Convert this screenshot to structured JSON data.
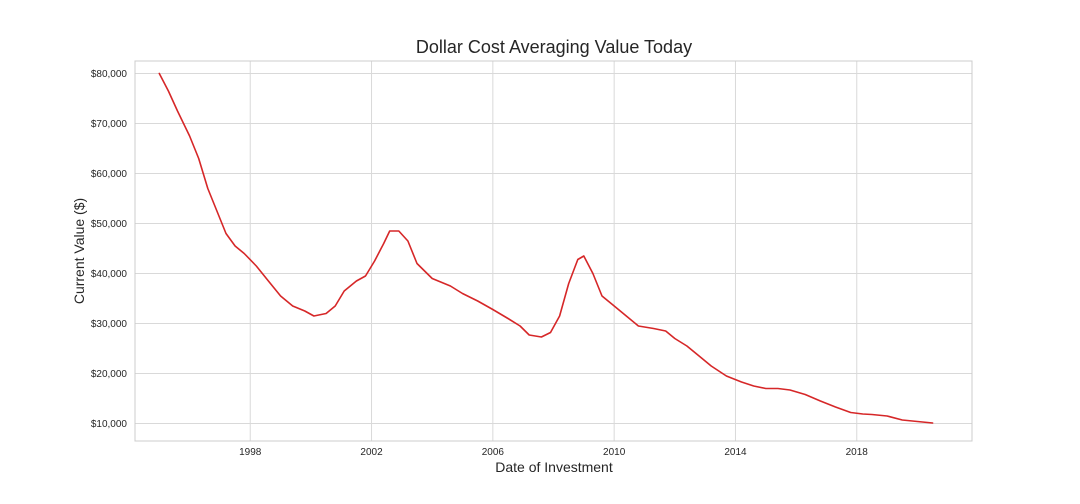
{
  "chart_data": {
    "type": "line",
    "title": "Dollar Cost Averaging Value Today",
    "xlabel": "Date of Investment",
    "ylabel": "Current Value ($)",
    "xlim": [
      1994.2,
      2021.8
    ],
    "ylim": [
      6500,
      82500
    ],
    "grid": true,
    "legend": "none",
    "colors": {
      "series": "#d62728",
      "grid": "#d9d9d9",
      "frame": "#cccccc",
      "text": "#262626"
    },
    "x_ticks": [
      {
        "value": 1998,
        "label": "1998"
      },
      {
        "value": 2002,
        "label": "2002"
      },
      {
        "value": 2006,
        "label": "2006"
      },
      {
        "value": 2010,
        "label": "2010"
      },
      {
        "value": 2014,
        "label": "2014"
      },
      {
        "value": 2018,
        "label": "2018"
      }
    ],
    "y_ticks": [
      {
        "value": 10000,
        "label": "$10,000"
      },
      {
        "value": 20000,
        "label": "$20,000"
      },
      {
        "value": 30000,
        "label": "$30,000"
      },
      {
        "value": 40000,
        "label": "$40,000"
      },
      {
        "value": 50000,
        "label": "$50,000"
      },
      {
        "value": 60000,
        "label": "$60,000"
      },
      {
        "value": 70000,
        "label": "$70,000"
      },
      {
        "value": 80000,
        "label": "$80,000"
      }
    ],
    "series": [
      {
        "x": [
          1995.0,
          1995.3,
          1995.6,
          1996.0,
          1996.3,
          1996.6,
          1996.9,
          1997.2,
          1997.5,
          1997.8,
          1998.2,
          1998.6,
          1999.0,
          1999.4,
          1999.8,
          2000.1,
          2000.5,
          2000.8,
          2001.1,
          2001.5,
          2001.8,
          2002.1,
          2002.4,
          2002.6,
          2002.9,
          2003.2,
          2003.5,
          2004.0,
          2004.6,
          2005.0,
          2005.5,
          2006.0,
          2006.5,
          2006.9,
          2007.2,
          2007.6,
          2007.9,
          2008.2,
          2008.5,
          2008.8,
          2009.0,
          2009.3,
          2009.6,
          2010.0,
          2010.4,
          2010.8,
          2011.3,
          2011.7,
          2012.0,
          2012.4,
          2012.8,
          2013.2,
          2013.7,
          2014.2,
          2014.6,
          2015.0,
          2015.4,
          2015.8,
          2016.3,
          2016.8,
          2017.3,
          2017.8,
          2018.2,
          2018.5,
          2019.0,
          2019.5,
          2020.0,
          2020.5
        ],
        "y": [
          80000,
          76500,
          72500,
          67500,
          63000,
          57000,
          52500,
          48000,
          45500,
          44000,
          41500,
          38500,
          35500,
          33500,
          32500,
          31500,
          32000,
          33500,
          36500,
          38500,
          39500,
          42500,
          46000,
          48500,
          48500,
          46500,
          42000,
          39000,
          37500,
          36000,
          34500,
          32800,
          31000,
          29500,
          27700,
          27300,
          28200,
          31500,
          38000,
          42800,
          43500,
          40000,
          35500,
          33500,
          31500,
          29500,
          29000,
          28500,
          27000,
          25500,
          23500,
          21500,
          19500,
          18300,
          17500,
          17000,
          17000,
          16700,
          15800,
          14500,
          13300,
          12200,
          11900,
          11800,
          11500,
          10700,
          10400,
          10100
        ]
      }
    ]
  }
}
